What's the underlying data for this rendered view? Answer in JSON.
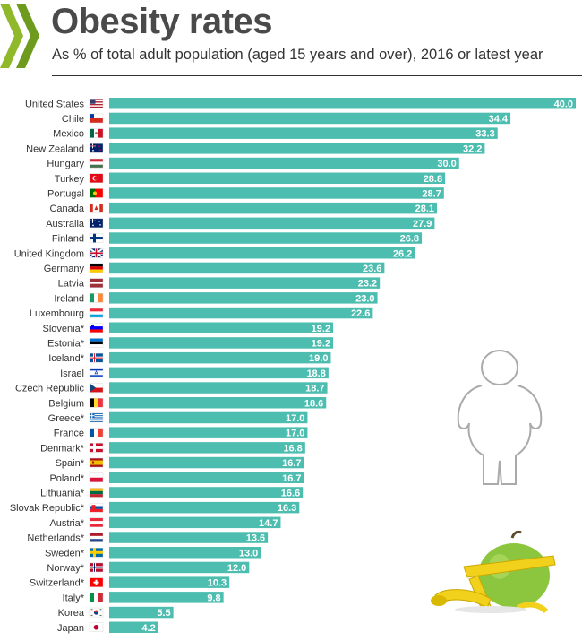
{
  "header": {
    "title": "Obesity rates",
    "subtitle": "As % of total adult population (aged 15 years and over), 2016 or latest year"
  },
  "colors": {
    "bar": "#4dbdb0",
    "title": "#4a4a4a",
    "logo": "#8fb82a"
  },
  "chart_data": {
    "type": "bar",
    "orientation": "horizontal",
    "title": "Obesity rates",
    "subtitle": "As % of total adult population (aged 15 years and over), 2016 or latest year",
    "xlabel": "",
    "ylabel": "",
    "xlim": [
      0,
      40
    ],
    "grid": false,
    "legend": "none",
    "categories": [
      "United States",
      "Chile",
      "Mexico",
      "New Zealand",
      "Hungary",
      "Turkey",
      "Portugal",
      "Canada",
      "Australia",
      "Finland",
      "United Kingdom",
      "Germany",
      "Latvia",
      "Ireland",
      "Luxembourg",
      "Slovenia*",
      "Estonia*",
      "Iceland*",
      "Israel",
      "Czech Republic",
      "Belgium",
      "Greece*",
      "France",
      "Denmark*",
      "Spain*",
      "Poland*",
      "Lithuania*",
      "Slovak Republic*",
      "Austria*",
      "Netherlands*",
      "Sweden*",
      "Norway*",
      "Switzerland*",
      "Italy*",
      "Korea",
      "Japan"
    ],
    "values": [
      40.0,
      34.4,
      33.3,
      32.2,
      30.0,
      28.8,
      28.7,
      28.1,
      27.9,
      26.8,
      26.2,
      23.6,
      23.2,
      23.0,
      22.6,
      19.2,
      19.2,
      19.0,
      18.8,
      18.7,
      18.6,
      17.0,
      17.0,
      16.8,
      16.7,
      16.7,
      16.6,
      16.3,
      14.7,
      13.6,
      13.0,
      12.0,
      10.3,
      9.8,
      5.5,
      4.2
    ],
    "value_labels": [
      "40.0",
      "34.4",
      "33.3",
      "32.2",
      "30.0",
      "28.8",
      "28.7",
      "28.1",
      "27.9",
      "26.8",
      "26.2",
      "23.6",
      "23.2",
      "23.0",
      "22.6",
      "19.2",
      "19.2",
      "19.0",
      "18.8",
      "18.7",
      "18.6",
      "17.0",
      "17.0",
      "16.8",
      "16.7",
      "16.7",
      "16.6",
      "16.3",
      "14.7",
      "13.6",
      "13.0",
      "12.0",
      "10.3",
      "9.8",
      "5.5",
      "4.2"
    ],
    "flags": [
      "us",
      "cl",
      "mx",
      "nz",
      "hu",
      "tr",
      "pt",
      "ca",
      "au",
      "fi",
      "gb",
      "de",
      "lv",
      "ie",
      "lu",
      "si",
      "ee",
      "is",
      "il",
      "cz",
      "be",
      "gr",
      "fr",
      "dk",
      "es",
      "pl",
      "lt",
      "sk",
      "at",
      "nl",
      "se",
      "no",
      "ch",
      "it",
      "kr",
      "jp"
    ]
  }
}
